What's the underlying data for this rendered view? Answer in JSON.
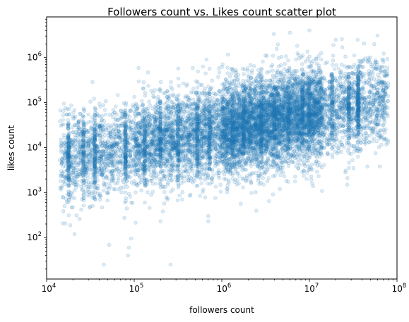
{
  "chart_data": {
    "type": "scatter",
    "title": "Followers count vs. Likes count scatter plot",
    "xlabel": "followers count",
    "ylabel": "likes count",
    "xscale": "log",
    "yscale": "log",
    "xlim": [
      10000,
      100000000
    ],
    "ylim": [
      12,
      8000000
    ],
    "x_ticks": [
      {
        "value": 10000,
        "base": "10",
        "exp": "4"
      },
      {
        "value": 100000,
        "base": "10",
        "exp": "5"
      },
      {
        "value": 1000000,
        "base": "10",
        "exp": "6"
      },
      {
        "value": 10000000,
        "base": "10",
        "exp": "7"
      },
      {
        "value": 100000000,
        "base": "10",
        "exp": "8"
      }
    ],
    "y_ticks": [
      {
        "value": 100,
        "base": "10",
        "exp": "2"
      },
      {
        "value": 1000,
        "base": "10",
        "exp": "3"
      },
      {
        "value": 10000,
        "base": "10",
        "exp": "4"
      },
      {
        "value": 100000,
        "base": "10",
        "exp": "5"
      },
      {
        "value": 1000000,
        "base": "10",
        "exp": "6"
      }
    ],
    "grid": false,
    "legend": "none",
    "marker_color": "#1f77b4",
    "marker_alpha": 0.15,
    "point_count_approx": 9000,
    "cloud": {
      "log_x_range": [
        4.15,
        7.9
      ],
      "log_y_center_at_log_x_4.2": 3.75,
      "log_y_center_at_log_x_7.3": 4.85,
      "log_y_spread": 0.5
    },
    "notable_points": [
      {
        "x": 45000,
        "y": 25
      },
      {
        "x": 260000,
        "y": 25
      },
      {
        "x": 87000,
        "y": 60
      },
      {
        "x": 92000,
        "y": 95
      },
      {
        "x": 85000,
        "y": 40
      },
      {
        "x": 200000,
        "y": 230
      },
      {
        "x": 700000,
        "y": 230
      },
      {
        "x": 700000,
        "y": 300
      },
      {
        "x": 27000000,
        "y": 1500
      },
      {
        "x": 10000000,
        "y": 4000000
      },
      {
        "x": 20000000,
        "y": 2500000
      },
      {
        "x": 70000000,
        "y": 800000
      },
      {
        "x": 70000000,
        "y": 120000
      }
    ]
  }
}
